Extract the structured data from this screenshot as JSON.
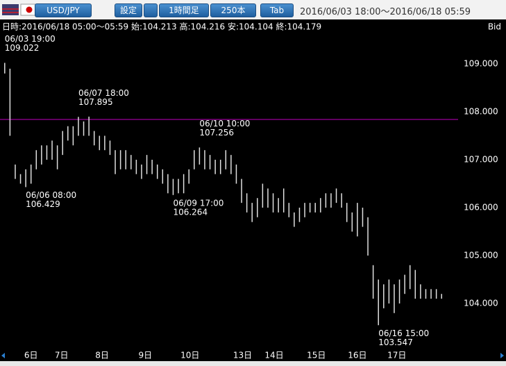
{
  "toolbar": {
    "symbol": "USD/JPY",
    "buttons": [
      "設定",
      "1時間足",
      "250本",
      "Tab"
    ],
    "range": "2016/06/03 18:00～2016/06/18 05:59"
  },
  "info": {
    "text": "日時:2016/06/18 05:00～05:59 始:104.213 高:104.216 安:104.104 終:104.179",
    "side": "Bid"
  },
  "chart_data": {
    "type": "hilo",
    "color": "#e0e0e0",
    "high": [
      109.022,
      108.9,
      106.9,
      106.7,
      106.8,
      106.9,
      107.2,
      107.3,
      107.3,
      107.4,
      107.3,
      107.6,
      107.7,
      107.7,
      107.895,
      107.8,
      107.9,
      107.6,
      107.5,
      107.5,
      107.4,
      107.2,
      107.2,
      107.2,
      107.1,
      107.0,
      106.9,
      107.1,
      107.0,
      106.9,
      106.8,
      106.7,
      106.6,
      106.6,
      106.7,
      106.8,
      107.2,
      107.256,
      107.2,
      107.1,
      107.0,
      107.0,
      107.2,
      107.1,
      106.9,
      106.6,
      106.3,
      106.1,
      106.2,
      106.5,
      106.4,
      106.3,
      106.2,
      106.4,
      106.1,
      105.9,
      106.0,
      106.1,
      106.1,
      106.1,
      106.2,
      106.3,
      106.3,
      106.4,
      106.3,
      106.1,
      105.9,
      106.1,
      106.0,
      105.8,
      104.8,
      104.5,
      104.4,
      104.5,
      104.4,
      104.5,
      104.6,
      104.8,
      104.7,
      104.4,
      104.3,
      104.3,
      104.3,
      104.2
    ],
    "low": [
      108.8,
      107.5,
      106.6,
      106.5,
      106.429,
      106.5,
      106.8,
      106.9,
      107.0,
      107.0,
      106.8,
      107.1,
      107.4,
      107.3,
      107.5,
      107.5,
      107.5,
      107.3,
      107.2,
      107.2,
      107.1,
      106.7,
      106.8,
      106.8,
      106.8,
      106.7,
      106.6,
      106.7,
      106.7,
      106.6,
      106.5,
      106.3,
      106.264,
      106.3,
      106.3,
      106.5,
      106.8,
      106.9,
      106.8,
      106.8,
      106.7,
      106.7,
      106.8,
      106.7,
      106.5,
      106.1,
      105.9,
      105.7,
      105.8,
      106.0,
      106.0,
      105.9,
      105.9,
      105.9,
      105.8,
      105.6,
      105.7,
      105.8,
      105.9,
      105.9,
      105.9,
      106.0,
      106.0,
      106.1,
      106.0,
      105.7,
      105.5,
      105.4,
      105.6,
      105.0,
      104.1,
      103.547,
      103.9,
      104.0,
      103.8,
      104.0,
      104.2,
      104.3,
      104.1,
      104.1,
      104.1,
      104.1,
      104.1,
      104.1
    ],
    "xlim": [
      0,
      84
    ],
    "xticks": [
      {
        "value": 5.5,
        "label": "6日"
      },
      {
        "value": 11.3,
        "label": "7日"
      },
      {
        "value": 19,
        "label": "8日"
      },
      {
        "value": 27.2,
        "label": "9日"
      },
      {
        "value": 35.7,
        "label": "10日"
      },
      {
        "value": 45.7,
        "label": "13日"
      },
      {
        "value": 51.7,
        "label": "14日"
      },
      {
        "value": 59.7,
        "label": "15日"
      },
      {
        "value": 67.5,
        "label": "16日"
      },
      {
        "value": 75,
        "label": "17日"
      }
    ],
    "ylim": [
      103.087,
      109.609
    ],
    "yticks": [
      {
        "value": 104,
        "label": "104.000"
      },
      {
        "value": 105,
        "label": "105.000"
      },
      {
        "value": 106,
        "label": "106.000"
      },
      {
        "value": 107,
        "label": "107.000"
      },
      {
        "value": 108,
        "label": "108.000"
      },
      {
        "value": 109,
        "label": "109.000"
      }
    ],
    "hline": {
      "value": 107.84,
      "color": "#c000c0"
    },
    "annotations": [
      {
        "time": "06/03 19:00",
        "value": 109.022
      },
      {
        "time": "06/06 08:00",
        "value": 106.429
      },
      {
        "time": "06/07 18:00",
        "value": 107.895
      },
      {
        "time": "06/09 17:00",
        "value": 106.264
      },
      {
        "time": "06/10 10:00",
        "value": 107.256
      },
      {
        "time": "06/16 15:00",
        "value": 103.547
      }
    ]
  }
}
